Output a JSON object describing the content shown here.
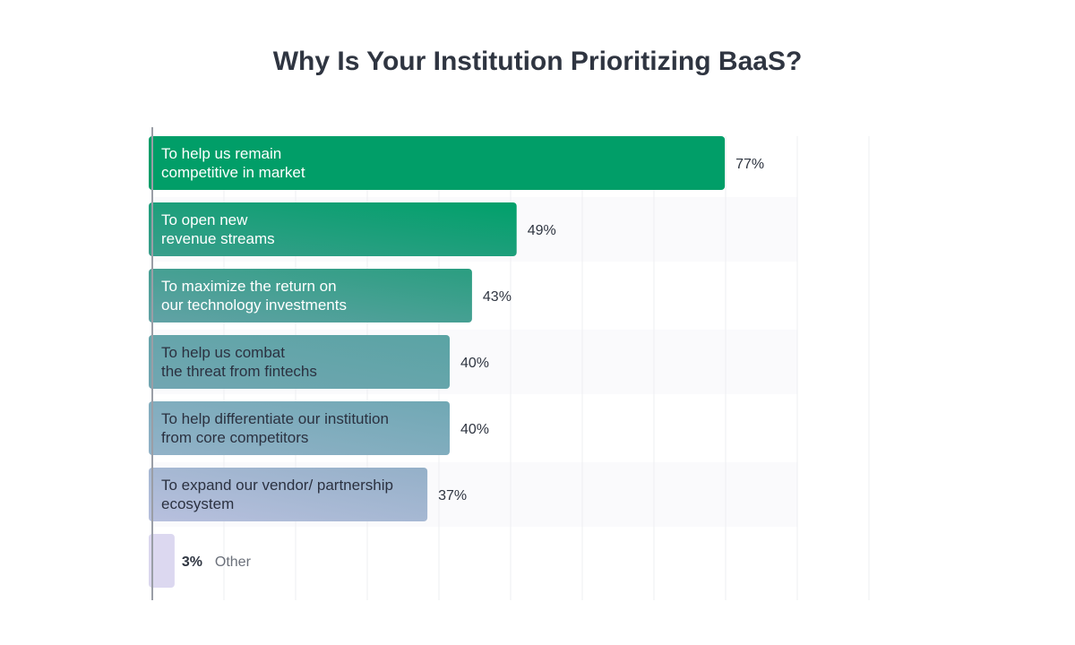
{
  "chart_data": {
    "type": "bar",
    "orientation": "horizontal",
    "title": "Why Is Your Institution Prioritizing BaaS?",
    "categories": [
      [
        "To help us remain",
        "competitive in market"
      ],
      [
        "To open new",
        "revenue streams"
      ],
      [
        "To maximize the return on",
        "our technology investments"
      ],
      [
        "To help us combat",
        "the threat from fintechs"
      ],
      [
        "To help differentiate our institution",
        "from core competitors"
      ],
      [
        "To expand our vendor/ partnership",
        "ecosystem"
      ],
      [
        "Other"
      ]
    ],
    "values": [
      77,
      49,
      43,
      40,
      40,
      37,
      3
    ],
    "value_labels": [
      "77%",
      "49%",
      "43%",
      "40%",
      "40%",
      "37%",
      "3%"
    ],
    "unit": "%",
    "grid": true,
    "colors": [
      [
        "#019e68",
        "#019e68"
      ],
      [
        "#3a9e8c",
        "#00a06a"
      ],
      [
        "#62a2a6",
        "#2a9e80"
      ],
      [
        "#72a6b2",
        "#5aa4a4"
      ],
      [
        "#92b2c8",
        "#70a8b4"
      ],
      [
        "#b8c0de",
        "#94b0c8"
      ],
      [
        "#dcd8f0",
        "#dcd8f0"
      ]
    ]
  }
}
